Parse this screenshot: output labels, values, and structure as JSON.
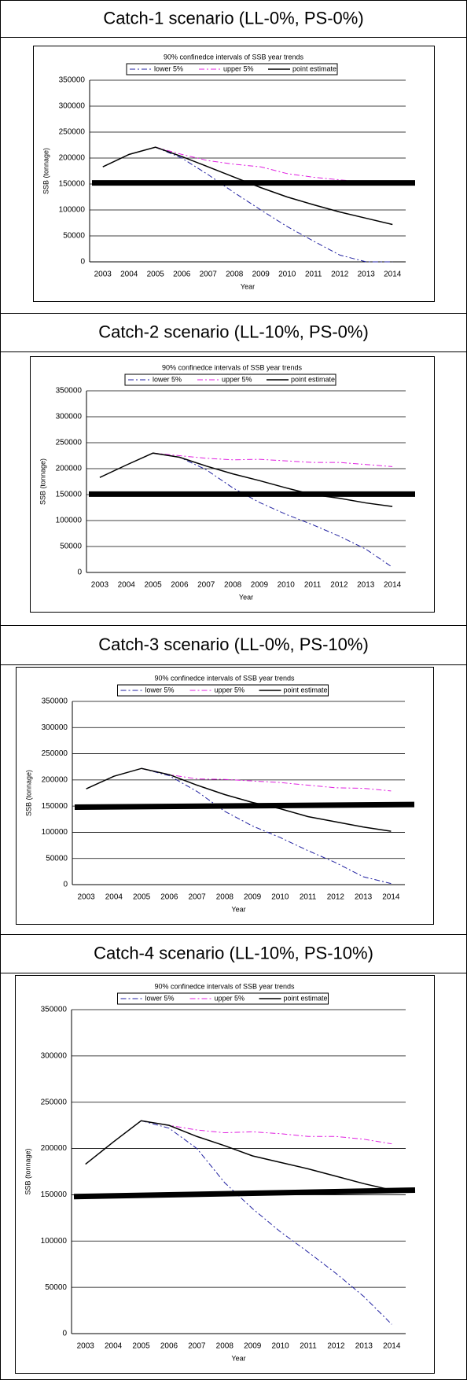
{
  "chart_data": [
    {
      "type": "line",
      "heading": "Catch-1 scenario (LL-0%, PS-0%)",
      "title": "90% confinedce intervals of SSB year trends",
      "x_label": "Year",
      "y_label": "SSB (tonnage)",
      "categories": [
        "2003",
        "2004",
        "2005",
        "2006",
        "2007",
        "2008",
        "2009",
        "2010",
        "2011",
        "2012",
        "2013",
        "2014"
      ],
      "ylim": [
        0,
        350000
      ],
      "yticks": [
        0,
        50000,
        100000,
        150000,
        200000,
        250000,
        300000,
        350000
      ],
      "grid": true,
      "series": [
        {
          "name": "lower 5%",
          "color": "#1f1fa0",
          "dash": "dashdot",
          "values": [
            null,
            null,
            221000,
            200000,
            168000,
            133000,
            100000,
            68000,
            40000,
            13000,
            0,
            0
          ]
        },
        {
          "name": "upper 5%",
          "color": "#e020e0",
          "dash": "dashdot",
          "values": [
            null,
            null,
            221000,
            207000,
            195000,
            188000,
            183000,
            170000,
            163000,
            158000,
            153000,
            150000
          ]
        },
        {
          "name": "point estimate",
          "color": "#000000",
          "dash": "solid",
          "values": [
            183000,
            207000,
            221000,
            203000,
            183000,
            163000,
            143000,
            125000,
            110000,
            96000,
            84000,
            72000
          ]
        }
      ],
      "reference_line": {
        "values": [
          152000,
          152000
        ],
        "color": "#000000"
      }
    },
    {
      "type": "line",
      "heading": "Catch-2 scenario (LL-10%, PS-0%)",
      "title": "90% confinedce intervals of SSB year trends",
      "x_label": "Year",
      "y_label": "SSB (tonnage)",
      "categories": [
        "2003",
        "2004",
        "2005",
        "2006",
        "2007",
        "2008",
        "2009",
        "2010",
        "2011",
        "2012",
        "2013",
        "2014"
      ],
      "ylim": [
        0,
        350000
      ],
      "yticks": [
        0,
        50000,
        100000,
        150000,
        200000,
        250000,
        300000,
        350000
      ],
      "grid": true,
      "series": [
        {
          "name": "lower 5%",
          "color": "#1f1fa0",
          "dash": "dashdot",
          "values": [
            null,
            null,
            230000,
            222000,
            198000,
            163000,
            135000,
            112000,
            92000,
            70000,
            45000,
            10000
          ]
        },
        {
          "name": "upper 5%",
          "color": "#e020e0",
          "dash": "dashdot",
          "values": [
            null,
            null,
            230000,
            225000,
            220000,
            217000,
            218000,
            215000,
            212000,
            212000,
            208000,
            204000
          ]
        },
        {
          "name": "point estimate",
          "color": "#000000",
          "dash": "solid",
          "values": [
            183000,
            207000,
            230000,
            222000,
            205000,
            190000,
            177000,
            163000,
            150000,
            143000,
            134000,
            127000
          ]
        }
      ],
      "reference_line": {
        "values": [
          151000,
          151000
        ],
        "color": "#000000"
      }
    },
    {
      "type": "line",
      "heading": "Catch-3 scenario (LL-0%, PS-10%)",
      "title": "90% confinedce intervals of SSB year trends",
      "x_label": "Year",
      "y_label": "SSB (tonnage)",
      "categories": [
        "2003",
        "2004",
        "2005",
        "2006",
        "2007",
        "2008",
        "2009",
        "2010",
        "2011",
        "2012",
        "2013",
        "2014"
      ],
      "ylim": [
        0,
        350000
      ],
      "yticks": [
        0,
        50000,
        100000,
        150000,
        200000,
        250000,
        300000,
        350000
      ],
      "grid": true,
      "series": [
        {
          "name": "lower 5%",
          "color": "#1f1fa0",
          "dash": "dashdot",
          "values": [
            null,
            null,
            222000,
            208000,
            178000,
            140000,
            112000,
            90000,
            65000,
            42000,
            15000,
            2000
          ]
        },
        {
          "name": "upper 5%",
          "color": "#e020e0",
          "dash": "dashdot",
          "values": [
            null,
            null,
            222000,
            210000,
            202000,
            201000,
            198000,
            195000,
            190000,
            185000,
            184000,
            179000
          ]
        },
        {
          "name": "point estimate",
          "color": "#000000",
          "dash": "solid",
          "values": [
            183000,
            207000,
            222000,
            210000,
            190000,
            172000,
            157000,
            145000,
            130000,
            120000,
            110000,
            102000
          ]
        }
      ],
      "reference_line": {
        "values": [
          148000,
          153000
        ],
        "color": "#000000"
      }
    },
    {
      "type": "line",
      "heading": "Catch-4 scenario (LL-10%, PS-10%)",
      "title": "90% confinedce intervals of SSB year trends",
      "x_label": "Year",
      "y_label": "SSB (tonnage)",
      "categories": [
        "2003",
        "2004",
        "2005",
        "2006",
        "2007",
        "2008",
        "2009",
        "2010",
        "2011",
        "2012",
        "2013",
        "2014"
      ],
      "ylim": [
        0,
        350000
      ],
      "yticks": [
        0,
        50000,
        100000,
        150000,
        200000,
        250000,
        300000,
        350000
      ],
      "grid": true,
      "series": [
        {
          "name": "lower 5%",
          "color": "#1f1fa0",
          "dash": "dashdot",
          "values": [
            null,
            null,
            230000,
            222000,
            200000,
            163000,
            135000,
            110000,
            88000,
            65000,
            40000,
            10000
          ]
        },
        {
          "name": "upper 5%",
          "color": "#e020e0",
          "dash": "dashdot",
          "values": [
            null,
            null,
            230000,
            225000,
            220000,
            217000,
            218000,
            216000,
            213000,
            213000,
            210000,
            205000
          ]
        },
        {
          "name": "point estimate",
          "color": "#000000",
          "dash": "solid",
          "values": [
            183000,
            207000,
            230000,
            225000,
            213000,
            203000,
            192000,
            185000,
            178000,
            170000,
            162000,
            155000
          ]
        }
      ],
      "reference_line": {
        "values": [
          148000,
          155000
        ],
        "color": "#000000"
      }
    }
  ]
}
